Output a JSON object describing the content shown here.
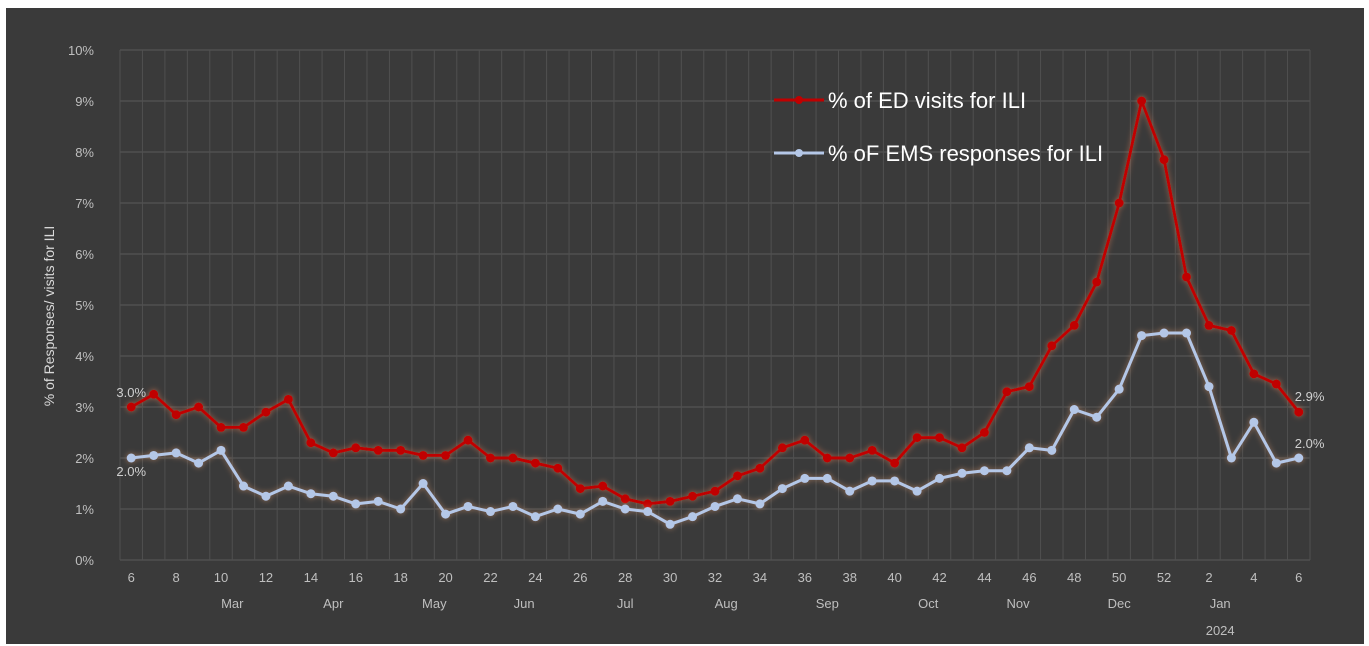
{
  "chart_data": {
    "type": "line",
    "ylabel": "% of Responses/ visits for ILI",
    "ylim": [
      0,
      10
    ],
    "yticks": [
      "0%",
      "1%",
      "2%",
      "3%",
      "4%",
      "5%",
      "6%",
      "7%",
      "8%",
      "9%",
      "10%"
    ],
    "week_labels": [
      "6",
      "8",
      "10",
      "12",
      "14",
      "16",
      "18",
      "20",
      "22",
      "24",
      "26",
      "28",
      "30",
      "32",
      "34",
      "36",
      "38",
      "40",
      "42",
      "44",
      "46",
      "48",
      "50",
      "52",
      "2",
      "4",
      "6"
    ],
    "month_labels": [
      {
        "label": "Mar",
        "center": 4.5
      },
      {
        "label": "Apr",
        "center": 9
      },
      {
        "label": "May",
        "center": 13.5
      },
      {
        "label": "Jun",
        "center": 17.5
      },
      {
        "label": "Jul",
        "center": 22
      },
      {
        "label": "Aug",
        "center": 26.5
      },
      {
        "label": "Sep",
        "center": 31
      },
      {
        "label": "Oct",
        "center": 35.5
      },
      {
        "label": "Nov",
        "center": 39.5
      },
      {
        "label": "Dec",
        "center": 44
      },
      {
        "label": "Jan",
        "center": 48.5
      }
    ],
    "year_label": {
      "label": "2024",
      "center": 48.5
    },
    "series": [
      {
        "name": "% of ED visits for ILI",
        "color": "#c00000",
        "values": [
          3.0,
          3.25,
          2.85,
          3.0,
          2.6,
          2.6,
          2.9,
          3.15,
          2.3,
          2.1,
          2.2,
          2.15,
          2.15,
          2.05,
          2.05,
          2.35,
          2.0,
          2.0,
          1.9,
          1.8,
          1.4,
          1.45,
          1.2,
          1.1,
          1.15,
          1.25,
          1.35,
          1.65,
          1.8,
          2.2,
          2.35,
          2.0,
          2.0,
          2.15,
          1.9,
          2.4,
          2.4,
          2.2,
          2.5,
          3.3,
          3.4,
          4.2,
          4.6,
          5.45,
          7.0,
          9.0,
          7.85,
          5.55,
          4.6,
          4.5,
          3.65,
          3.45,
          2.9
        ]
      },
      {
        "name": "% oF EMS responses for ILI",
        "color": "#b4c7e7",
        "values": [
          2.0,
          2.05,
          2.1,
          1.9,
          2.15,
          1.45,
          1.25,
          1.45,
          1.3,
          1.25,
          1.1,
          1.15,
          1.0,
          1.5,
          0.9,
          1.05,
          0.95,
          1.05,
          0.85,
          1.0,
          0.9,
          1.15,
          1.0,
          0.95,
          0.7,
          0.85,
          1.05,
          1.2,
          1.1,
          1.4,
          1.6,
          1.6,
          1.35,
          1.55,
          1.55,
          1.35,
          1.6,
          1.7,
          1.75,
          1.75,
          2.2,
          2.15,
          2.95,
          2.8,
          3.35,
          4.4,
          4.45,
          4.45,
          3.4,
          2.0,
          2.7,
          1.9,
          2.0
        ]
      }
    ],
    "data_labels": [
      {
        "series": 0,
        "index": 0,
        "text": "3.0%"
      },
      {
        "series": 1,
        "index": 0,
        "text": "2.0%"
      },
      {
        "series": 0,
        "index": 52,
        "text": "2.9%"
      },
      {
        "series": 1,
        "index": 52,
        "text": "2.0%"
      }
    ],
    "grid": true,
    "legend": "top-right"
  }
}
